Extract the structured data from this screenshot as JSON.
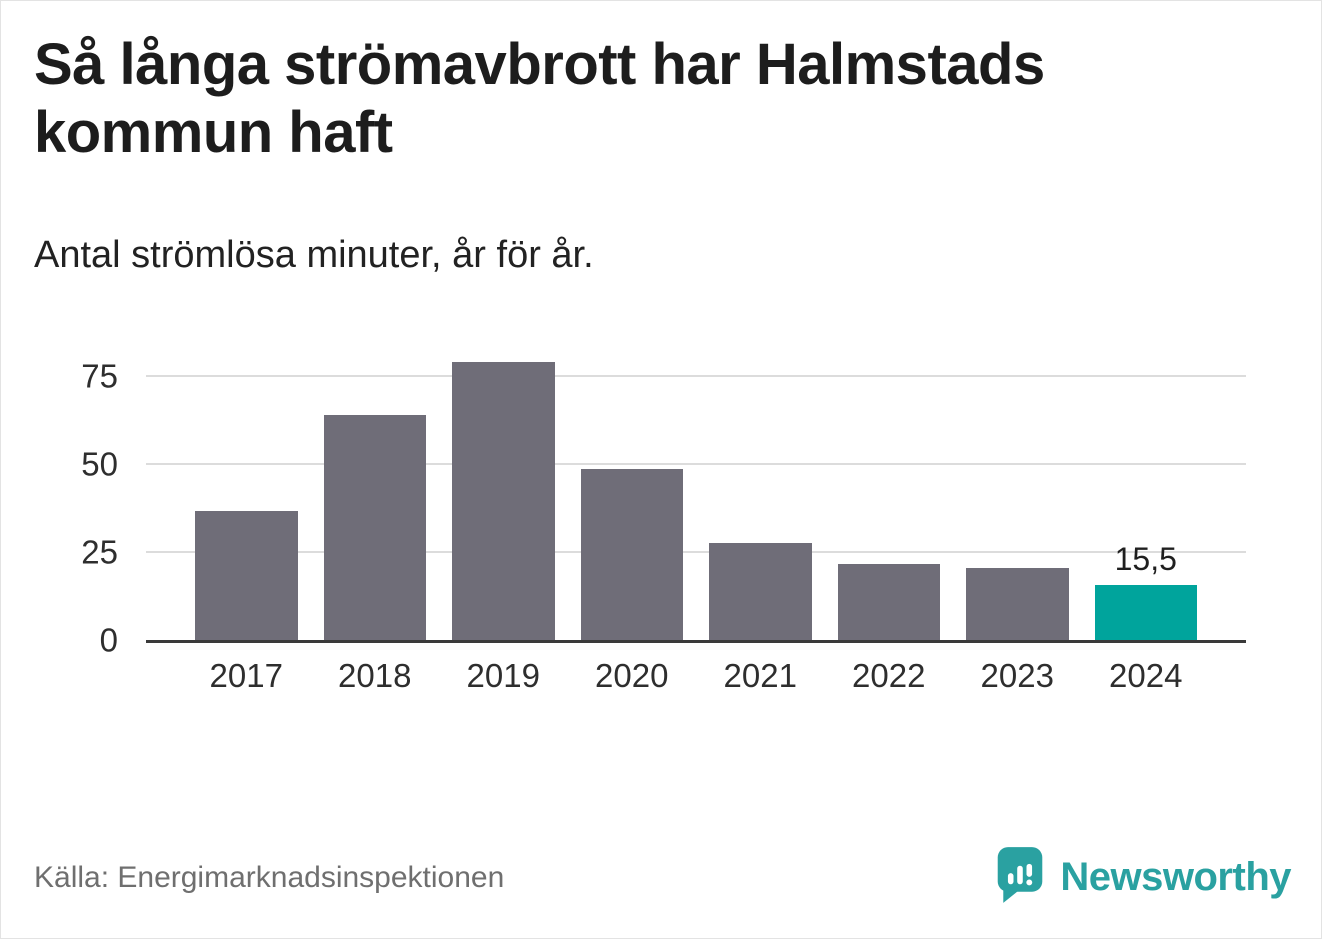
{
  "header": {
    "title": "Så långa strömavbrott har Halmstads kommun haft",
    "subtitle": "Antal strömlösa minuter, år för år."
  },
  "chart_data": {
    "type": "bar",
    "title": "Så långa strömavbrott har Halmstads kommun haft",
    "subtitle": "Antal strömlösa minuter, år för år.",
    "categories": [
      "2017",
      "2018",
      "2019",
      "2020",
      "2021",
      "2022",
      "2023",
      "2024"
    ],
    "values": [
      36.5,
      64,
      79,
      48.5,
      27.5,
      21.5,
      20.5,
      15.5
    ],
    "value_labels": [
      null,
      null,
      null,
      null,
      null,
      null,
      null,
      "15,5"
    ],
    "yticks": [
      0,
      25,
      50,
      75
    ],
    "ylim": [
      0,
      85
    ],
    "grid": true,
    "xlabel": "",
    "ylabel": "",
    "legend_position": "none",
    "bar_color": "#6f6d78",
    "highlight_index": 7,
    "highlight_color": "#00a49c"
  },
  "footer": {
    "source": "Källa: Energimarknadsinspektionen",
    "brand": "Newsworthy"
  },
  "colors": {
    "brand_teal": "#2aa1a1",
    "highlight_teal": "#00a49c",
    "bar_gray": "#6f6d78"
  }
}
